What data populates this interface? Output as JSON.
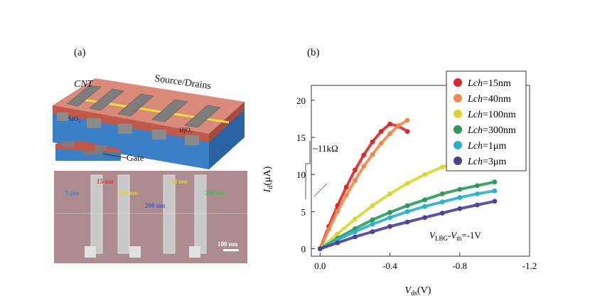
{
  "panel_a": {
    "label": "(a)",
    "labels": {
      "cnt": "CNT",
      "source_drains": "Source/Drains",
      "sio2": "SiO₂",
      "hfo2": "HfO₂",
      "gate": "Gate"
    },
    "sem": {
      "labels": [
        {
          "text": "15 nm",
          "color": "#e23a3a"
        },
        {
          "text": "100 nm",
          "color": "#e6d21f"
        },
        {
          "text": "40 nm",
          "color": "#e6d21f"
        },
        {
          "text": "300 nm",
          "color": "#3fbf3f"
        },
        {
          "text": "1 µm",
          "color": "#3a86d8"
        },
        {
          "text": "200 nm",
          "color": "#3a5fd8"
        }
      ],
      "scale_bar": "100 nm"
    }
  },
  "panel_b": {
    "label": "(b)",
    "annotation_resistance": "~11kΩ",
    "annotation_bias": "V_LBG-V_th=-1V",
    "colors": {
      "15nm": "#d8282d",
      "40nm": "#f08a4b",
      "100nm": "#d9d634",
      "300nm": "#2e9a5a",
      "1um": "#2ab0c8",
      "3um": "#4a4394"
    }
  },
  "chart_data": {
    "type": "scatter",
    "title": "",
    "xlabel": "V_ds(V)",
    "ylabel": "I_d(μA)",
    "xlim": [
      0.05,
      -1.2
    ],
    "ylim": [
      -1,
      22
    ],
    "x_ticks": [
      {
        "value": 0,
        "label": "0.0"
      },
      {
        "value": -0.4,
        "label": "-0.4"
      },
      {
        "value": -0.8,
        "label": "-0.8"
      },
      {
        "value": -1.2,
        "label": "-1.2"
      }
    ],
    "y_ticks": [
      {
        "value": 0,
        "label": "0"
      },
      {
        "value": 5,
        "label": "5"
      },
      {
        "value": 10,
        "label": "10"
      },
      {
        "value": 15,
        "label": "15"
      },
      {
        "value": 20,
        "label": "20"
      }
    ],
    "legend_position": "top-right",
    "series": [
      {
        "name": "Lch=15nm",
        "x": [
          0,
          -0.05,
          -0.1,
          -0.15,
          -0.2,
          -0.25,
          -0.3,
          -0.35,
          -0.4,
          -0.45,
          -0.5
        ],
        "y": [
          0,
          3.0,
          5.8,
          8.3,
          10.6,
          12.6,
          14.4,
          15.8,
          16.8,
          16.5,
          15.8
        ]
      },
      {
        "name": "Lch=40nm",
        "x": [
          0,
          -0.05,
          -0.1,
          -0.15,
          -0.2,
          -0.25,
          -0.3,
          -0.35,
          -0.4,
          -0.45,
          -0.5
        ],
        "y": [
          0,
          2.6,
          5.0,
          7.2,
          9.2,
          11.1,
          12.7,
          14.2,
          15.5,
          16.6,
          17.3
        ]
      },
      {
        "name": "Lch=100nm",
        "x": [
          0,
          -0.1,
          -0.2,
          -0.3,
          -0.4,
          -0.5,
          -0.6,
          -0.7,
          -0.8,
          -0.9,
          -1.0
        ],
        "y": [
          0,
          2.0,
          4.0,
          5.8,
          7.4,
          8.8,
          10.0,
          11.0,
          11.8,
          12.4,
          12.0
        ]
      },
      {
        "name": "Lch=300nm",
        "x": [
          0,
          -0.1,
          -0.2,
          -0.3,
          -0.4,
          -0.5,
          -0.6,
          -0.7,
          -0.8,
          -0.9,
          -1.0
        ],
        "y": [
          0,
          1.4,
          2.7,
          3.9,
          4.9,
          5.8,
          6.6,
          7.4,
          8.0,
          8.5,
          9.0
        ]
      },
      {
        "name": "Lch=1μm",
        "x": [
          0,
          -0.1,
          -0.2,
          -0.3,
          -0.4,
          -0.5,
          -0.6,
          -0.7,
          -0.8,
          -0.9,
          -1.0
        ],
        "y": [
          0,
          1.2,
          2.3,
          3.3,
          4.2,
          5.0,
          5.7,
          6.3,
          6.9,
          7.4,
          7.8
        ]
      },
      {
        "name": "Lch=3μm",
        "x": [
          0,
          -0.1,
          -0.2,
          -0.3,
          -0.4,
          -0.5,
          -0.6,
          -0.7,
          -0.8,
          -0.9,
          -1.0
        ],
        "y": [
          0,
          0.8,
          1.6,
          2.3,
          3.0,
          3.6,
          4.2,
          4.8,
          5.4,
          5.9,
          6.4
        ]
      }
    ]
  }
}
